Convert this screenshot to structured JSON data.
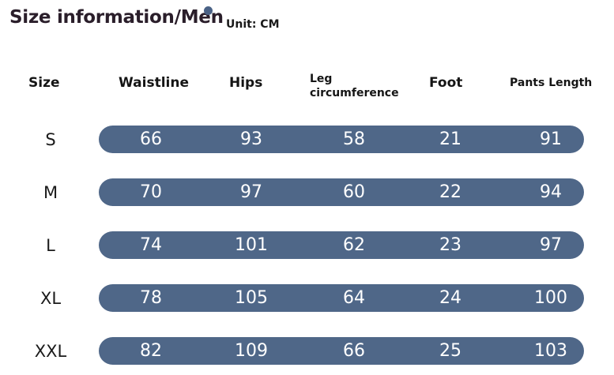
{
  "header": {
    "title": "Size information/Men",
    "unit": "Unit: CM"
  },
  "colors": {
    "bar": "#4f6788",
    "dot": "#4a6286",
    "title": "#2a1e2a"
  },
  "table": {
    "columns": [
      "Size",
      "Waistline",
      "Hips",
      "Leg circumference",
      "Foot",
      "Pants Length"
    ],
    "rows": [
      {
        "size": "S",
        "waistline": "66",
        "hips": "93",
        "leg": "58",
        "foot": "21",
        "pants": "91"
      },
      {
        "size": "M",
        "waistline": "70",
        "hips": "97",
        "leg": "60",
        "foot": "22",
        "pants": "94"
      },
      {
        "size": "L",
        "waistline": "74",
        "hips": "101",
        "leg": "62",
        "foot": "23",
        "pants": "97"
      },
      {
        "size": "XL",
        "waistline": "78",
        "hips": "105",
        "leg": "64",
        "foot": "24",
        "pants": "100"
      },
      {
        "size": "XXL",
        "waistline": "82",
        "hips": "109",
        "leg": "66",
        "foot": "25",
        "pants": "103"
      }
    ]
  }
}
